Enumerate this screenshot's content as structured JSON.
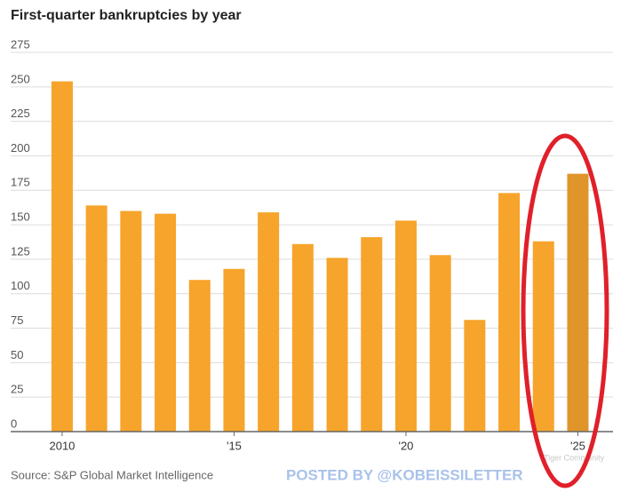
{
  "chart_data": {
    "type": "bar",
    "title": "First-quarter bankruptcies by year",
    "categories": [
      "2010",
      null,
      null,
      null,
      null,
      "'15",
      null,
      null,
      null,
      null,
      "'20",
      null,
      null,
      null,
      null,
      "'25"
    ],
    "values": [
      254,
      164,
      160,
      158,
      110,
      118,
      159,
      136,
      126,
      141,
      153,
      128,
      81,
      173,
      138,
      187
    ],
    "colors": [
      "#f6a42b",
      "#f6a42b",
      "#f6a42b",
      "#f6a42b",
      "#f6a42b",
      "#f6a42b",
      "#f6a42b",
      "#f6a42b",
      "#f6a42b",
      "#f6a42b",
      "#f6a42b",
      "#f6a42b",
      "#f6a42b",
      "#f6a42b",
      "#f6a42b",
      "#df952a"
    ],
    "ylim": [
      0,
      275
    ],
    "yticks": [
      0,
      25,
      50,
      75,
      100,
      125,
      150,
      175,
      200,
      225,
      250,
      275
    ],
    "grid": true,
    "source": "Source: S&P Global Market Intelligence",
    "watermark": "POSTED BY @KOBEISSILETTER",
    "watermark2": "Tiger Community"
  }
}
